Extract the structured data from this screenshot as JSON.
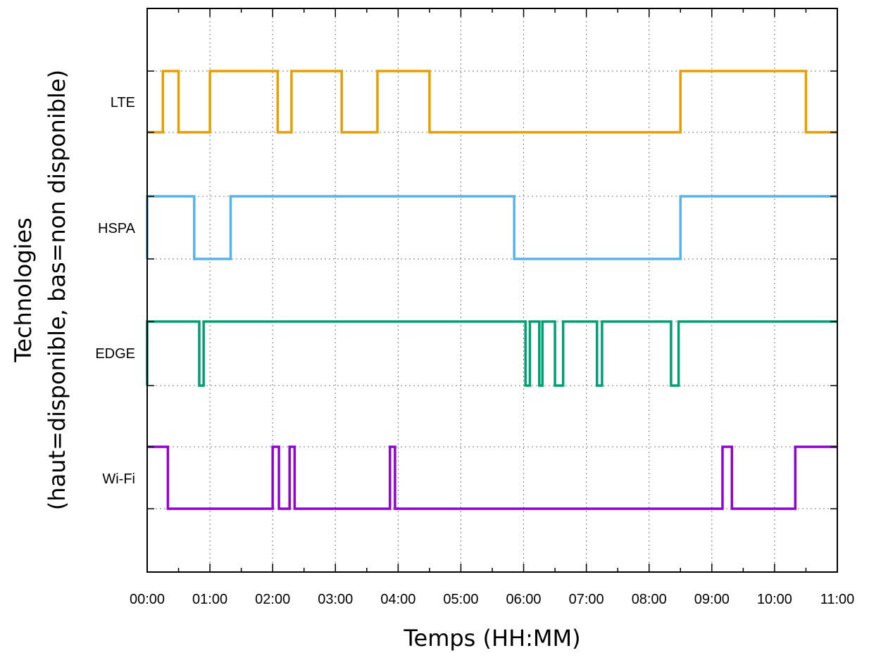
{
  "chart_data": {
    "type": "line",
    "xlabel": "Temps (HH:MM)",
    "ylabel_line1": "Technologies",
    "ylabel_line2": "(haut=disponible, bas=non disponible)",
    "xlim": [
      0,
      11
    ],
    "x_ticks": [
      "00:00",
      "01:00",
      "02:00",
      "03:00",
      "04:00",
      "05:00",
      "06:00",
      "07:00",
      "08:00",
      "09:00",
      "10:00",
      "11:00"
    ],
    "grid": true,
    "series": [
      {
        "name": "LTE",
        "color": "#E69F00",
        "steps": [
          [
            0,
            0
          ],
          [
            0.25,
            1
          ],
          [
            0.5,
            0
          ],
          [
            1.0,
            1
          ],
          [
            2.08,
            0
          ],
          [
            2.3,
            1
          ],
          [
            3.1,
            0
          ],
          [
            3.67,
            1
          ],
          [
            4.5,
            0
          ],
          [
            8.5,
            1
          ],
          [
            10.5,
            0
          ],
          [
            11,
            0
          ]
        ]
      },
      {
        "name": "HSPA",
        "color": "#56B4E9",
        "steps": [
          [
            0,
            0
          ],
          [
            0,
            1
          ],
          [
            0.75,
            0
          ],
          [
            1.33,
            1
          ],
          [
            5.85,
            0
          ],
          [
            8.5,
            1
          ],
          [
            11,
            1
          ]
        ]
      },
      {
        "name": "EDGE",
        "color": "#009E73",
        "steps": [
          [
            0,
            0
          ],
          [
            0,
            1
          ],
          [
            0.83,
            0
          ],
          [
            0.9,
            1
          ],
          [
            6.03,
            0
          ],
          [
            6.1,
            1
          ],
          [
            6.25,
            0
          ],
          [
            6.3,
            1
          ],
          [
            6.5,
            0
          ],
          [
            6.63,
            1
          ],
          [
            7.17,
            0
          ],
          [
            7.25,
            1
          ],
          [
            8.35,
            0
          ],
          [
            8.47,
            1
          ],
          [
            11,
            1
          ]
        ]
      },
      {
        "name": "Wi-Fi",
        "color": "#9400D3",
        "steps": [
          [
            0,
            1
          ],
          [
            0.33,
            0
          ],
          [
            2.0,
            1
          ],
          [
            2.1,
            0
          ],
          [
            2.27,
            1
          ],
          [
            2.35,
            0
          ],
          [
            3.87,
            1
          ],
          [
            3.95,
            0
          ],
          [
            9.17,
            1
          ],
          [
            9.32,
            0
          ],
          [
            10.33,
            1
          ],
          [
            11,
            1
          ]
        ]
      }
    ]
  }
}
